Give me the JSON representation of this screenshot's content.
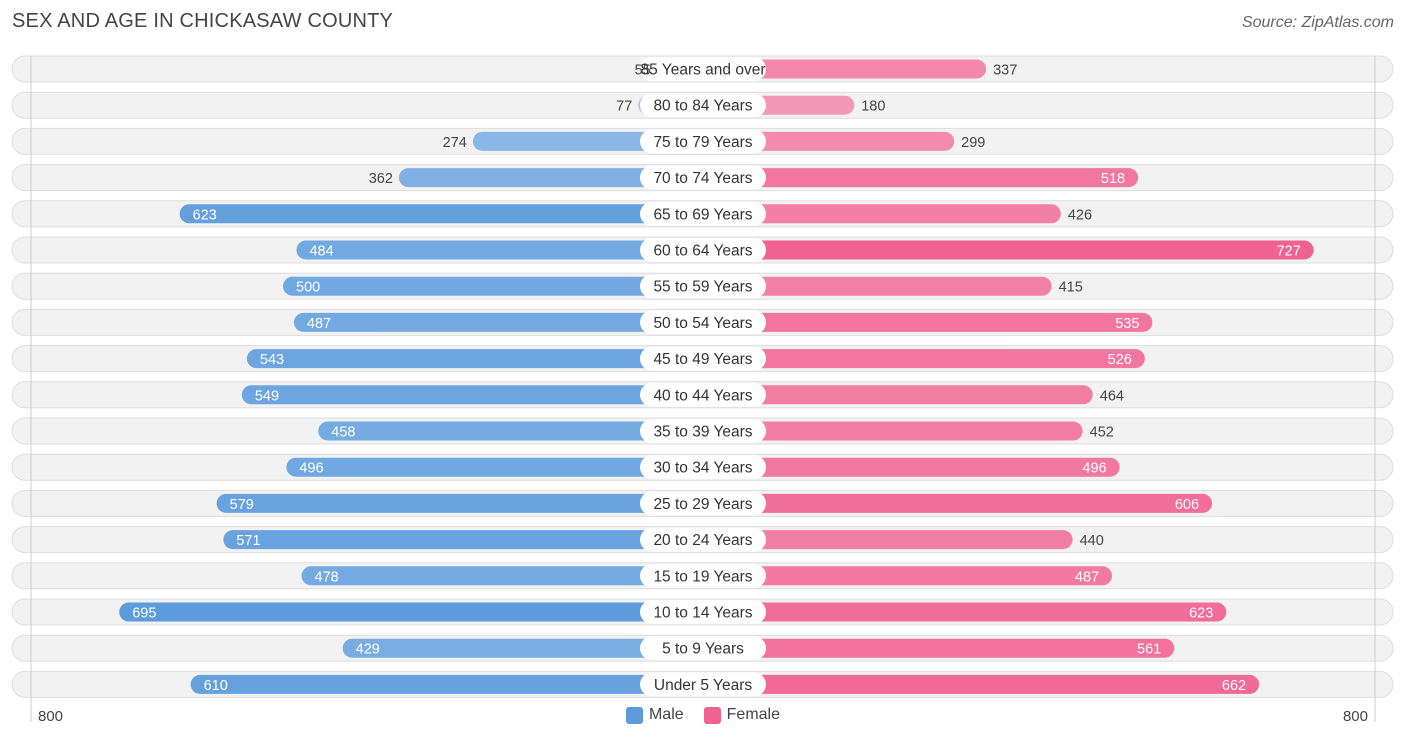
{
  "title": "SEX AND AGE IN CHICKASAW COUNTY",
  "source": "Source: ZipAtlas.com",
  "colors": {
    "male": "#5b9bdc",
    "male_light": "#a9c9ec",
    "female": "#f06292",
    "female_light": "#f7a8c2",
    "row_bg": "#f2f2f2",
    "row_border": "#dddddd"
  },
  "legend": {
    "male_label": "Male",
    "female_label": "Female"
  },
  "axis": {
    "left_label": "800",
    "right_label": "800"
  },
  "chart_data": {
    "type": "bar",
    "orientation": "horizontal-diverging",
    "title": "SEX AND AGE IN CHICKASAW COUNTY",
    "xlim": [
      0,
      800
    ],
    "categories": [
      "85 Years and over",
      "80 to 84 Years",
      "75 to 79 Years",
      "70 to 74 Years",
      "65 to 69 Years",
      "60 to 64 Years",
      "55 to 59 Years",
      "50 to 54 Years",
      "45 to 49 Years",
      "40 to 44 Years",
      "35 to 39 Years",
      "30 to 34 Years",
      "25 to 29 Years",
      "20 to 24 Years",
      "15 to 19 Years",
      "10 to 14 Years",
      "5 to 9 Years",
      "Under 5 Years"
    ],
    "series": [
      {
        "name": "Male",
        "values": [
          55,
          77,
          274,
          362,
          623,
          484,
          500,
          487,
          543,
          549,
          458,
          496,
          579,
          571,
          478,
          695,
          429,
          610
        ]
      },
      {
        "name": "Female",
        "values": [
          337,
          180,
          299,
          518,
          426,
          727,
          415,
          535,
          526,
          464,
          452,
          496,
          606,
          440,
          487,
          623,
          561,
          662
        ]
      }
    ]
  }
}
